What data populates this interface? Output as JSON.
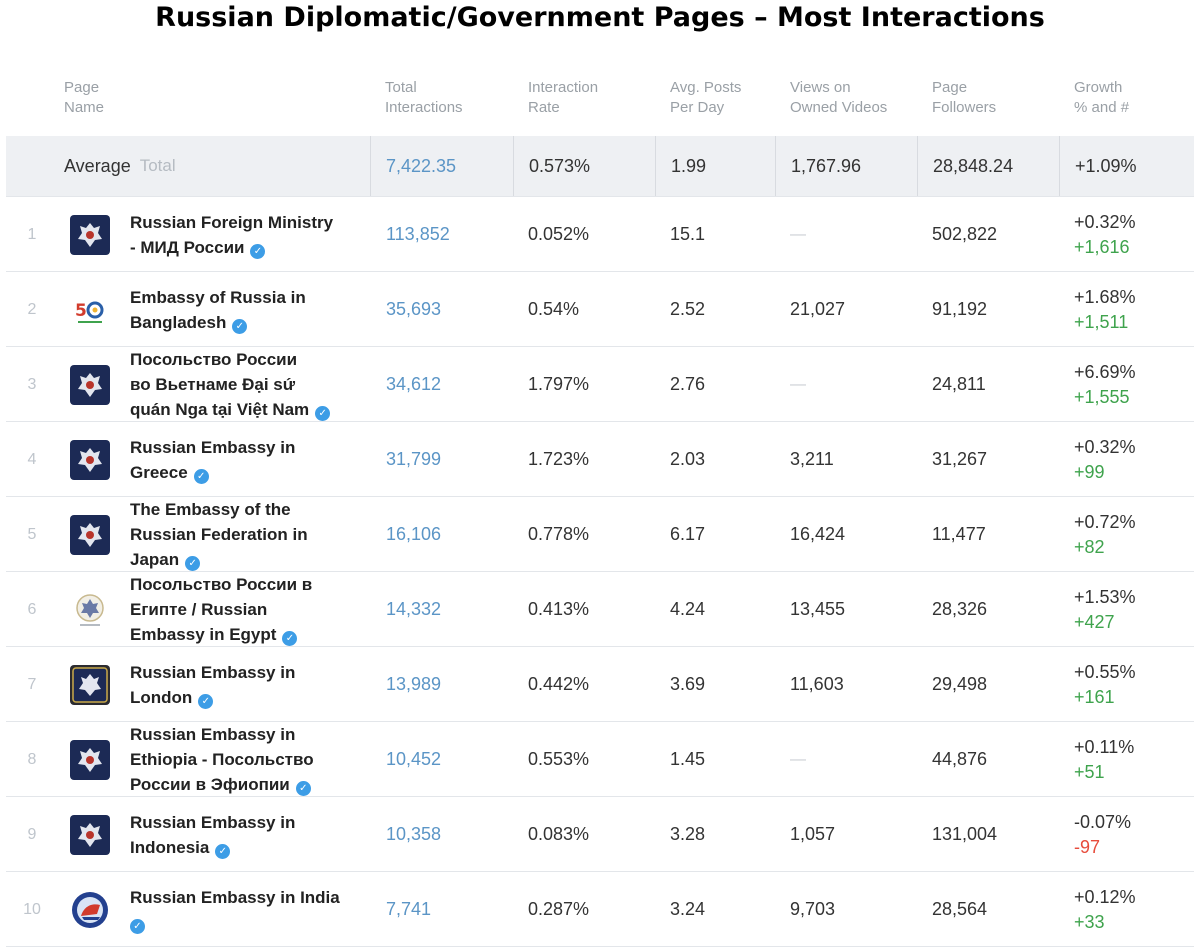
{
  "title": "Russian Diplomatic/Government Pages – Most Interactions",
  "headers": {
    "page_name": [
      "Page",
      "Name"
    ],
    "total_interactions": [
      "Total",
      "Interactions"
    ],
    "interaction_rate": [
      "Interaction",
      "Rate"
    ],
    "avg_posts": [
      "Avg. Posts",
      "Per Day"
    ],
    "views": [
      "Views on",
      "Owned Videos"
    ],
    "followers": [
      "Page",
      "Followers"
    ],
    "growth": [
      "Growth",
      "% and #"
    ]
  },
  "average": {
    "label": "Average",
    "toggle": "Total",
    "total_interactions": "7,422.35",
    "interaction_rate": "0.573%",
    "avg_posts": "1.99",
    "views": "1,767.96",
    "followers": "28,848.24",
    "growth": "+1.09%"
  },
  "colors": {
    "link": "#5b95c6",
    "positive": "#3fa34d",
    "negative": "#e74c3c",
    "verified": "#3d9de6"
  },
  "rows": [
    {
      "rank": "1",
      "name_lines": [
        "Russian Foreign Ministry",
        "- МИД России"
      ],
      "logo": "emblem-icon",
      "total": "113,852",
      "rate": "0.052%",
      "posts": "15.1",
      "views": "—",
      "followers": "502,822",
      "growth_pct": "+0.32%",
      "growth_num": "+1,616",
      "trend": "positive"
    },
    {
      "rank": "2",
      "name_lines": [
        "Embassy of Russia in",
        "Bangladesh"
      ],
      "logo": "anniversary-50-icon",
      "total": "35,693",
      "rate": "0.54%",
      "posts": "2.52",
      "views": "21,027",
      "followers": "91,192",
      "growth_pct": "+1.68%",
      "growth_num": "+1,511",
      "trend": "positive"
    },
    {
      "rank": "3",
      "name_lines": [
        "Посольство России",
        "во Вьетнаме Đại sứ",
        "quán Nga tại Việt Nam"
      ],
      "logo": "emblem-icon",
      "total": "34,612",
      "rate": "1.797%",
      "posts": "2.76",
      "views": "—",
      "followers": "24,811",
      "growth_pct": "+6.69%",
      "growth_num": "+1,555",
      "trend": "positive"
    },
    {
      "rank": "4",
      "name_lines": [
        "Russian Embassy in",
        "Greece"
      ],
      "logo": "emblem-icon",
      "total": "31,799",
      "rate": "1.723%",
      "posts": "2.03",
      "views": "3,211",
      "followers": "31,267",
      "growth_pct": "+0.32%",
      "growth_num": "+99",
      "trend": "positive"
    },
    {
      "rank": "5",
      "name_lines": [
        "The Embassy of the",
        "Russian Federation in",
        "Japan"
      ],
      "logo": "emblem-icon",
      "total": "16,106",
      "rate": "0.778%",
      "posts": "6.17",
      "views": "16,424",
      "followers": "11,477",
      "growth_pct": "+0.72%",
      "growth_num": "+82",
      "trend": "positive"
    },
    {
      "rank": "6",
      "name_lines": [
        "Посольство России в",
        "Египте / Russian",
        "Embassy in Egypt"
      ],
      "logo": "seal-icon",
      "total": "14,332",
      "rate": "0.413%",
      "posts": "4.24",
      "views": "13,455",
      "followers": "28,326",
      "growth_pct": "+1.53%",
      "growth_num": "+427",
      "trend": "positive"
    },
    {
      "rank": "7",
      "name_lines": [
        "Russian Embassy in",
        "London"
      ],
      "logo": "emblem-framed-icon",
      "total": "13,989",
      "rate": "0.442%",
      "posts": "3.69",
      "views": "11,603",
      "followers": "29,498",
      "growth_pct": "+0.55%",
      "growth_num": "+161",
      "trend": "positive"
    },
    {
      "rank": "8",
      "name_lines": [
        "Russian Embassy in",
        "Ethiopia - Посольство",
        "России в Эфиопии"
      ],
      "logo": "emblem-icon",
      "total": "10,452",
      "rate": "0.553%",
      "posts": "1.45",
      "views": "—",
      "followers": "44,876",
      "growth_pct": "+0.11%",
      "growth_num": "+51",
      "trend": "positive"
    },
    {
      "rank": "9",
      "name_lines": [
        "Russian Embassy in",
        "Indonesia"
      ],
      "logo": "emblem-icon",
      "total": "10,358",
      "rate": "0.083%",
      "posts": "3.28",
      "views": "1,057",
      "followers": "131,004",
      "growth_pct": "-0.07%",
      "growth_num": "-97",
      "trend": "negative"
    },
    {
      "rank": "10",
      "name_lines": [
        "Russian Embassy in India",
        ""
      ],
      "logo": "round-badge-icon",
      "total": "7,741",
      "rate": "0.287%",
      "posts": "3.24",
      "views": "9,703",
      "followers": "28,564",
      "growth_pct": "+0.12%",
      "growth_num": "+33",
      "trend": "positive"
    }
  ]
}
